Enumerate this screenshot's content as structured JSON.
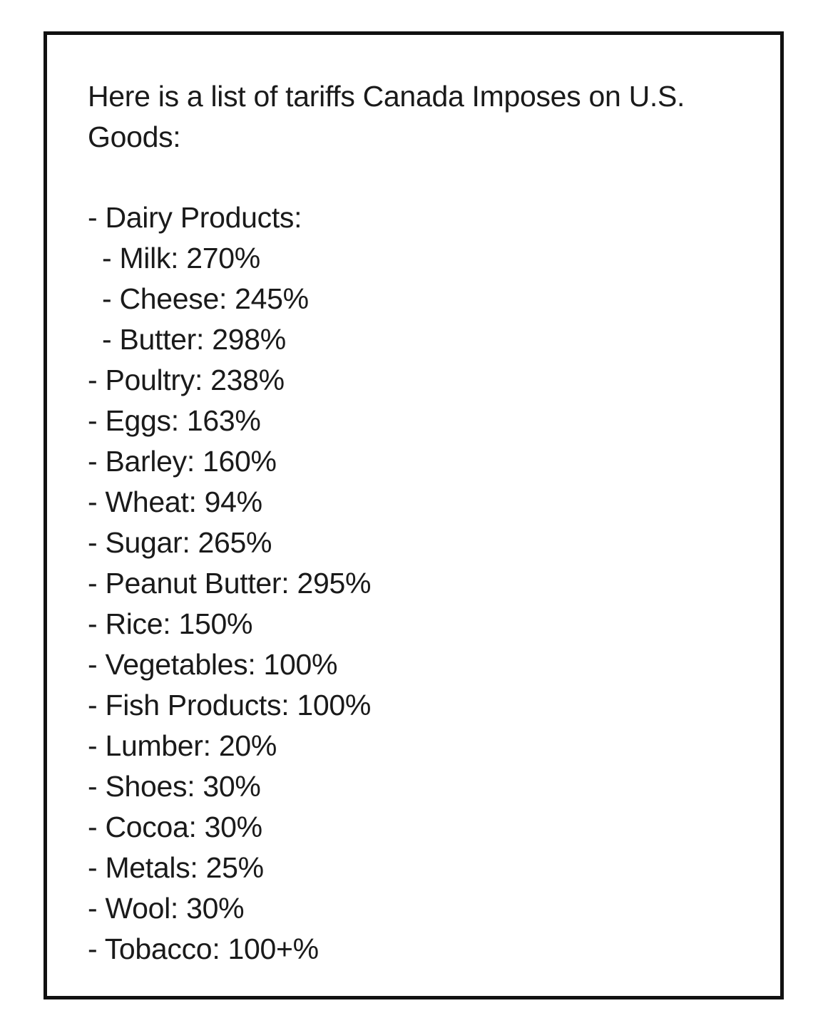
{
  "heading": "Here is a list of tariffs Canada Imposes on U.S. Goods:",
  "items": [
    {
      "text": "- Dairy Products:",
      "level": 0
    },
    {
      "text": "- Milk: 270%",
      "level": 1
    },
    {
      "text": "- Cheese: 245%",
      "level": 1
    },
    {
      "text": "- Butter: 298%",
      "level": 1
    },
    {
      "text": "- Poultry: 238%",
      "level": 0
    },
    {
      "text": "- Eggs: 163%",
      "level": 0
    },
    {
      "text": "- Barley: 160%",
      "level": 0
    },
    {
      "text": "- Wheat: 94%",
      "level": 0
    },
    {
      "text": "- Sugar: 265%",
      "level": 0
    },
    {
      "text": "- Peanut Butter: 295%",
      "level": 0
    },
    {
      "text": "- Rice: 150%",
      "level": 0
    },
    {
      "text": "- Vegetables: 100%",
      "level": 0
    },
    {
      "text": "- Fish Products: 100%",
      "level": 0
    },
    {
      "text": "- Lumber: 20%",
      "level": 0
    },
    {
      "text": "- Shoes: 30%",
      "level": 0
    },
    {
      "text": "- Cocoa: 30%",
      "level": 0
    },
    {
      "text": "- Metals: 25%",
      "level": 0
    },
    {
      "text": "- Wool: 30%",
      "level": 0
    },
    {
      "text": "- Tobacco: 100+%",
      "level": 0
    }
  ],
  "colors": {
    "text": "#1a1a1a",
    "border": "#111111",
    "background": "#ffffff"
  }
}
